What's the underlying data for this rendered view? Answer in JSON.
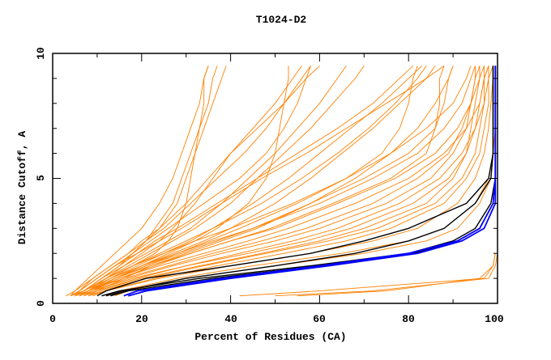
{
  "chart_data": {
    "type": "line",
    "title": "T1024-D2",
    "xlabel": "Percent of Residues (CA)",
    "ylabel": "Distance Cutoff, A",
    "xlim": [
      0,
      100
    ],
    "ylim": [
      0,
      10
    ],
    "x_ticks": [
      "0",
      "20",
      "40",
      "60",
      "80",
      "100"
    ],
    "y_ticks": [
      "0",
      "5",
      "10"
    ],
    "grid": false,
    "colors": {
      "orange": "#ff8000",
      "black": "#000000",
      "blue": "#0000ff"
    },
    "cutoffs": [
      0.3,
      0.5,
      1,
      1.5,
      2,
      2.5,
      3,
      4,
      5,
      6,
      7,
      8,
      9,
      9.5
    ],
    "series": [
      {
        "group": "orange",
        "x": [
          12,
          15,
          28,
          45,
          65,
          80,
          88,
          95,
          98,
          99,
          99,
          99,
          99,
          99
        ]
      },
      {
        "group": "orange",
        "x": [
          14,
          17,
          30,
          50,
          70,
          84,
          91,
          96,
          98.5,
          99,
          99.5,
          99.5,
          99.5,
          99.5
        ]
      },
      {
        "group": "orange",
        "x": [
          8,
          12,
          24,
          40,
          58,
          72,
          82,
          91,
          95,
          97,
          98,
          98.5,
          99,
          99
        ]
      },
      {
        "group": "orange",
        "x": [
          6,
          9,
          18,
          30,
          42,
          54,
          64,
          78,
          87,
          92,
          95,
          97,
          98,
          98
        ]
      },
      {
        "group": "orange",
        "x": [
          5,
          8,
          15,
          24,
          34,
          44,
          53,
          68,
          80,
          88,
          93,
          96,
          97,
          97
        ]
      },
      {
        "group": "orange",
        "x": [
          7,
          10,
          20,
          33,
          47,
          60,
          70,
          84,
          90,
          93,
          94,
          95,
          96,
          96
        ]
      },
      {
        "group": "orange",
        "x": [
          5,
          7,
          13,
          20,
          28,
          36,
          45,
          60,
          72,
          82,
          88,
          92,
          94,
          95
        ]
      },
      {
        "group": "orange",
        "x": [
          4,
          7,
          12,
          18,
          25,
          32,
          40,
          54,
          66,
          76,
          84,
          90,
          93,
          94
        ]
      },
      {
        "group": "orange",
        "x": [
          6,
          9,
          17,
          27,
          38,
          50,
          60,
          75,
          85,
          90,
          93,
          94,
          95,
          96
        ]
      },
      {
        "group": "orange",
        "x": [
          8,
          11,
          21,
          34,
          48,
          62,
          73,
          86,
          92,
          95,
          96,
          97,
          97,
          98
        ]
      },
      {
        "group": "orange",
        "x": [
          5,
          8,
          14,
          22,
          31,
          40,
          50,
          64,
          77,
          86,
          91,
          94,
          96,
          97
        ]
      },
      {
        "group": "orange",
        "x": [
          9,
          12,
          23,
          37,
          52,
          66,
          76,
          88,
          93,
          96,
          97,
          98,
          98,
          99
        ]
      },
      {
        "group": "orange",
        "x": [
          7,
          10,
          19,
          30,
          44,
          57,
          67,
          81,
          89,
          93,
          95,
          96,
          97,
          98
        ]
      },
      {
        "group": "orange",
        "x": [
          6,
          8,
          16,
          26,
          36,
          47,
          57,
          72,
          82,
          89,
          92,
          94,
          95,
          95
        ]
      },
      {
        "group": "orange",
        "x": [
          4,
          6,
          10,
          14,
          18,
          21,
          24,
          28,
          30,
          32,
          34,
          36,
          38,
          39
        ]
      },
      {
        "group": "orange",
        "x": [
          5,
          7,
          11,
          15,
          18,
          21,
          23,
          27,
          29,
          31,
          33,
          35,
          36,
          37
        ]
      },
      {
        "group": "orange",
        "x": [
          6,
          8,
          12,
          16,
          20,
          24,
          27,
          32,
          36,
          40,
          45,
          50,
          54,
          56
        ]
      },
      {
        "group": "orange",
        "x": [
          4,
          6,
          9,
          13,
          17,
          20,
          24,
          30,
          35,
          40,
          46,
          52,
          57,
          60
        ]
      },
      {
        "group": "orange",
        "x": [
          5,
          7,
          12,
          17,
          22,
          27,
          32,
          40,
          46,
          52,
          58,
          63,
          68,
          70
        ]
      },
      {
        "group": "orange",
        "x": [
          6,
          8,
          13,
          19,
          25,
          31,
          36,
          45,
          53,
          60,
          67,
          74,
          80,
          83
        ]
      },
      {
        "group": "orange",
        "x": [
          4,
          5,
          8,
          11,
          14,
          17,
          20,
          24,
          27,
          29,
          31,
          33,
          34,
          35
        ]
      },
      {
        "group": "orange",
        "x": [
          5,
          7,
          11,
          16,
          21,
          26,
          31,
          38,
          44,
          50,
          55,
          60,
          64,
          66
        ]
      },
      {
        "group": "orange",
        "x": [
          7,
          9,
          14,
          20,
          27,
          34,
          40,
          50,
          58,
          65,
          72,
          78,
          84,
          86
        ]
      },
      {
        "group": "orange",
        "x": [
          5,
          6,
          10,
          14,
          18,
          22,
          26,
          34,
          42,
          48,
          52,
          55,
          57,
          58
        ]
      },
      {
        "group": "orange",
        "x": [
          3,
          5,
          9,
          13,
          17,
          21,
          25,
          31,
          37,
          43,
          48,
          52,
          56,
          58
        ]
      },
      {
        "group": "orange",
        "x": [
          6,
          8,
          13,
          18,
          24,
          30,
          36,
          47,
          56,
          64,
          71,
          77,
          82,
          84
        ]
      },
      {
        "group": "orange",
        "x": [
          5,
          7,
          11,
          15,
          19,
          23,
          28,
          37,
          46,
          55,
          64,
          72,
          78,
          81
        ]
      },
      {
        "group": "orange",
        "x": [
          4,
          6,
          10,
          14,
          19,
          24,
          29,
          38,
          47,
          57,
          66,
          75,
          84,
          88
        ]
      },
      {
        "group": "orange",
        "x": [
          8,
          10,
          16,
          22,
          30,
          38,
          46,
          58,
          68,
          76,
          82,
          86,
          89,
          90
        ]
      },
      {
        "group": "orange",
        "x": [
          5,
          7,
          12,
          18,
          23,
          26,
          28,
          30,
          31,
          32,
          33,
          34,
          34,
          35
        ]
      },
      {
        "group": "orange",
        "x": [
          6,
          8,
          14,
          20,
          26,
          32,
          37,
          44,
          48,
          50,
          51,
          52,
          53,
          53
        ]
      },
      {
        "group": "orange",
        "x": [
          5,
          8,
          14,
          21,
          29,
          37,
          45,
          58,
          70,
          80,
          86,
          88,
          89,
          90
        ]
      },
      {
        "group": "orange",
        "x": [
          7,
          9,
          15,
          23,
          31,
          40,
          49,
          63,
          76,
          84,
          86,
          87,
          87,
          88
        ]
      },
      {
        "group": "orange",
        "x": [
          6,
          8,
          14,
          21,
          28,
          35,
          42,
          55,
          66,
          74,
          78,
          80,
          81,
          82
        ]
      },
      {
        "group": "orange",
        "x": [
          42,
          60,
          97,
          99,
          99.5,
          null,
          null,
          null,
          null,
          null,
          null,
          null,
          null,
          null
        ]
      },
      {
        "group": "orange",
        "x": [
          50,
          72,
          98,
          99.5,
          100,
          null,
          null,
          null,
          null,
          null,
          null,
          null,
          null,
          null
        ]
      },
      {
        "group": "orange",
        "x": [
          55,
          75,
          96,
          99,
          99.5,
          null,
          null,
          null,
          null,
          null,
          null,
          null,
          null,
          null
        ]
      },
      {
        "group": "black",
        "x": [
          10,
          12,
          21,
          40,
          58,
          70,
          80,
          93,
          98,
          99,
          99,
          99,
          99,
          99
        ]
      },
      {
        "group": "black",
        "x": [
          12,
          16,
          30,
          50,
          68,
          80,
          88,
          95,
          98.5,
          99,
          99,
          99,
          99,
          99
        ]
      },
      {
        "group": "black",
        "x": [
          11,
          15,
          33,
          58,
          80,
          90,
          95,
          98.5,
          99.5,
          99.5,
          99.5,
          99.5,
          99.5,
          99.5
        ]
      },
      {
        "group": "black",
        "x": [
          13,
          17,
          36,
          60,
          81,
          91,
          96,
          99,
          99.5,
          99.5,
          99.5,
          99.5,
          99.5,
          99.5
        ]
      },
      {
        "group": "blue",
        "x": [
          16,
          19,
          38,
          60,
          80,
          91,
          96,
          99,
          99.5,
          99.5,
          99.5,
          99.5,
          99.5,
          99.5
        ]
      },
      {
        "group": "blue",
        "x": [
          17,
          21,
          40,
          62,
          82,
          92,
          97,
          99.5,
          99.5,
          99.5,
          99.5,
          99.5,
          99.5,
          99.5
        ]
      }
    ]
  }
}
